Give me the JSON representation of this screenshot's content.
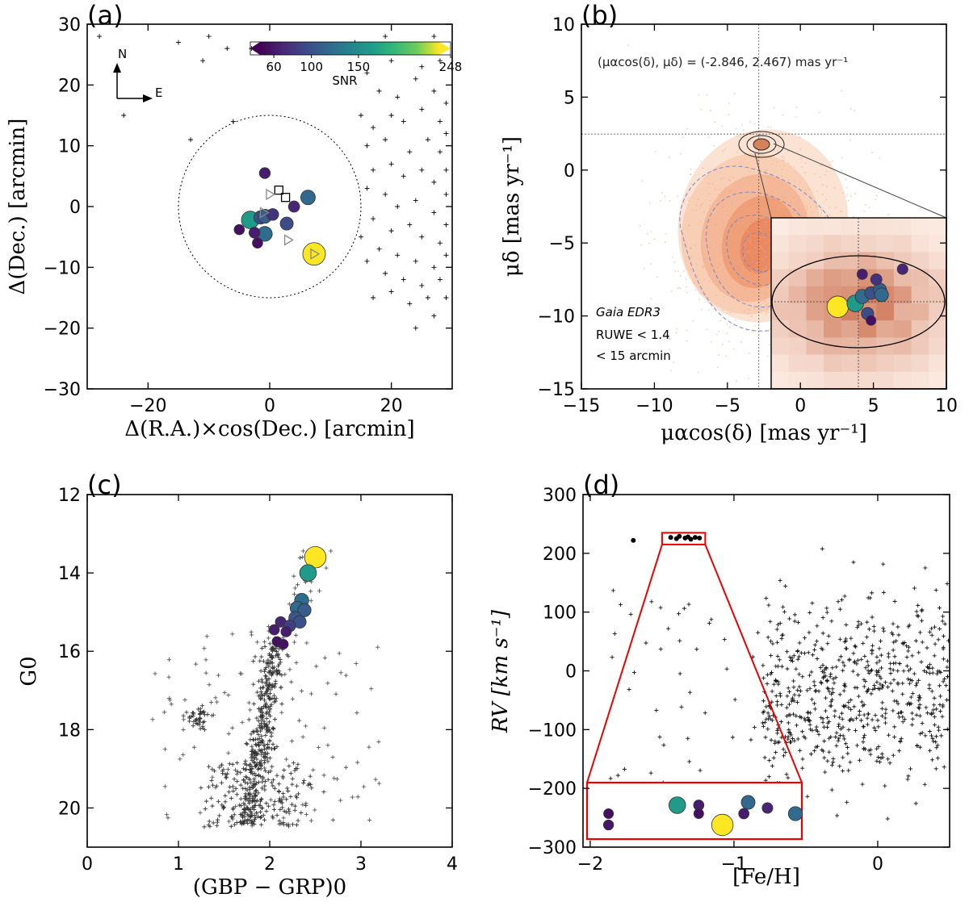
{
  "chart_data": [
    {
      "panel": "(a)",
      "type": "scatter",
      "xlabel": "Δ(R.A.)×cos(Dec.) [arcmin]",
      "ylabel": "Δ(Dec.) [arcmin]",
      "xlim": [
        -30,
        30
      ],
      "ylim": [
        -30,
        30
      ],
      "xticks": [
        -20,
        0,
        20
      ],
      "xtick_labels": [
        "−20",
        "0",
        "20"
      ],
      "yticks": [
        -30,
        -20,
        -10,
        0,
        10,
        20,
        30
      ],
      "ytick_labels": [
        "−30",
        "−20",
        "−10",
        "0",
        "10",
        "20",
        "30"
      ],
      "compass": {
        "north": "N",
        "east": "E"
      },
      "circle_radius_arcmin": 15,
      "colorbar": {
        "label": "SNR",
        "ticks": [
          60,
          100,
          150,
          248
        ],
        "tick_labels": [
          "60",
          "100",
          "150",
          "248"
        ],
        "range": [
          35,
          248
        ]
      },
      "members": [
        {
          "x": -0.8,
          "y": 5.5,
          "snr": 55
        },
        {
          "x": 6.3,
          "y": 1.5,
          "snr": 115
        },
        {
          "x": 4.0,
          "y": 0.0,
          "snr": 60
        },
        {
          "x": -3.2,
          "y": -2.2,
          "snr": 165
        },
        {
          "x": -1.5,
          "y": -1.8,
          "snr": 95
        },
        {
          "x": -0.8,
          "y": -1.6,
          "snr": 105
        },
        {
          "x": 0.5,
          "y": -1.3,
          "snr": 70
        },
        {
          "x": 2.8,
          "y": -2.8,
          "snr": 90
        },
        {
          "x": -0.8,
          "y": -4.5,
          "snr": 120
        },
        {
          "x": -2.5,
          "y": -4.3,
          "snr": 55
        },
        {
          "x": -5.0,
          "y": -3.8,
          "snr": 45
        },
        {
          "x": -2.0,
          "y": -6.0,
          "snr": 45
        },
        {
          "x": 7.3,
          "y": -7.8,
          "snr": 248
        }
      ],
      "squares": [
        {
          "x": 1.5,
          "y": 2.7
        },
        {
          "x": 2.6,
          "y": 1.5
        }
      ],
      "triangles": [
        {
          "x": 0.0,
          "y": 2.0
        },
        {
          "x": 3.0,
          "y": -5.5
        },
        {
          "x": 7.3,
          "y": -7.8
        },
        {
          "x": -1.0,
          "y": -1.0
        }
      ],
      "field_stars": [
        [
          -28,
          28
        ],
        [
          -15,
          27
        ],
        [
          -10,
          28
        ],
        [
          -7,
          26
        ],
        [
          -24,
          15
        ],
        [
          -13,
          11
        ],
        [
          -11,
          24
        ],
        [
          -6,
          14
        ],
        [
          -3,
          26
        ],
        [
          14,
          27
        ],
        [
          19,
          28
        ],
        [
          27,
          28
        ],
        [
          20,
          24
        ],
        [
          23,
          26
        ],
        [
          25,
          23
        ],
        [
          28,
          24
        ],
        [
          16,
          22
        ],
        [
          18,
          19
        ],
        [
          21,
          18
        ],
        [
          24,
          21
        ],
        [
          27,
          19
        ],
        [
          29,
          17
        ],
        [
          15,
          15
        ],
        [
          17,
          13
        ],
        [
          20,
          15
        ],
        [
          22,
          14
        ],
        [
          25,
          16
        ],
        [
          28,
          14
        ],
        [
          29,
          12
        ],
        [
          16,
          10
        ],
        [
          19,
          11
        ],
        [
          23,
          9
        ],
        [
          26,
          11
        ],
        [
          28,
          9
        ],
        [
          29,
          6
        ],
        [
          17,
          6
        ],
        [
          20,
          7
        ],
        [
          22,
          5
        ],
        [
          25,
          6
        ],
        [
          27,
          4
        ],
        [
          29,
          2
        ],
        [
          16,
          3
        ],
        [
          19,
          2
        ],
        [
          21,
          0
        ],
        [
          24,
          1
        ],
        [
          27,
          -1
        ],
        [
          29,
          -3
        ],
        [
          17,
          -2
        ],
        [
          20,
          -4
        ],
        [
          23,
          -3
        ],
        [
          25,
          -5
        ],
        [
          28,
          -6
        ],
        [
          15,
          -5
        ],
        [
          18,
          -7
        ],
        [
          21,
          -8
        ],
        [
          24,
          -9
        ],
        [
          27,
          -10
        ],
        [
          29,
          -8
        ],
        [
          16,
          -9
        ],
        [
          19,
          -11
        ],
        [
          22,
          -12
        ],
        [
          25,
          -13
        ],
        [
          28,
          -12
        ],
        [
          20,
          -14
        ],
        [
          23,
          -16
        ],
        [
          26,
          -15
        ],
        [
          29,
          -15
        ],
        [
          24,
          -20
        ],
        [
          27,
          -18
        ],
        [
          17,
          -15
        ]
      ]
    },
    {
      "panel": "(b)",
      "type": "scatter",
      "xlabel": "μαcos(δ) [mas yr⁻¹]",
      "ylabel": "μδ [mas yr⁻¹]",
      "xlim": [
        -15,
        10
      ],
      "ylim": [
        -15,
        10
      ],
      "xticks": [
        -15,
        -10,
        -5,
        0,
        5,
        10
      ],
      "xtick_labels": [
        "−15",
        "−10",
        "−5",
        "0",
        "5",
        "10"
      ],
      "yticks": [
        -15,
        -10,
        -5,
        0,
        5,
        10
      ],
      "ytick_labels": [
        "−15",
        "−10",
        "−5",
        "0",
        "5",
        "10"
      ],
      "mean_pm": {
        "pmra": -2.846,
        "pmdec": 2.467
      },
      "annotation": "(μαcos(δ), μδ) = (-2.846, 2.467) mas yr⁻¹",
      "legend_lines": [
        "Gaia EDR3",
        "RUWE < 1.4",
        "< 15 arcmin"
      ],
      "inset_members": [
        {
          "x": 0.38,
          "y": 0.52,
          "snr": 248
        },
        {
          "x": 0.48,
          "y": 0.5,
          "snr": 165
        },
        {
          "x": 0.52,
          "y": 0.46,
          "snr": 120
        },
        {
          "x": 0.57,
          "y": 0.44,
          "snr": 95
        },
        {
          "x": 0.62,
          "y": 0.42,
          "snr": 105
        },
        {
          "x": 0.6,
          "y": 0.36,
          "snr": 70
        },
        {
          "x": 0.75,
          "y": 0.3,
          "snr": 60
        },
        {
          "x": 0.52,
          "y": 0.33,
          "snr": 55
        },
        {
          "x": 0.55,
          "y": 0.56,
          "snr": 90
        },
        {
          "x": 0.57,
          "y": 0.6,
          "snr": 45
        },
        {
          "x": 0.63,
          "y": 0.45,
          "snr": 115
        }
      ]
    },
    {
      "panel": "(c)",
      "type": "scatter",
      "xlabel": "(GBP − GRP)0",
      "ylabel": "G0",
      "xlim": [
        0,
        4
      ],
      "ylim": [
        21,
        12
      ],
      "xticks": [
        0,
        1,
        2,
        3,
        4
      ],
      "xtick_labels": [
        "0",
        "1",
        "2",
        "3",
        "4"
      ],
      "yticks": [
        12,
        14,
        16,
        18,
        20
      ],
      "ytick_labels": [
        "12",
        "14",
        "16",
        "18",
        "20"
      ],
      "members": [
        {
          "x": 2.5,
          "y": 13.6,
          "snr": 248
        },
        {
          "x": 2.42,
          "y": 14.0,
          "snr": 165
        },
        {
          "x": 2.35,
          "y": 14.7,
          "snr": 120
        },
        {
          "x": 2.3,
          "y": 14.9,
          "snr": 115
        },
        {
          "x": 2.38,
          "y": 14.95,
          "snr": 105
        },
        {
          "x": 2.28,
          "y": 15.15,
          "snr": 100
        },
        {
          "x": 2.33,
          "y": 15.25,
          "snr": 95
        },
        {
          "x": 2.12,
          "y": 15.25,
          "snr": 60
        },
        {
          "x": 2.22,
          "y": 15.35,
          "snr": 80
        },
        {
          "x": 2.05,
          "y": 15.45,
          "snr": 55
        },
        {
          "x": 2.18,
          "y": 15.5,
          "snr": 55
        },
        {
          "x": 2.08,
          "y": 15.75,
          "snr": 45
        },
        {
          "x": 2.15,
          "y": 15.82,
          "snr": 45
        }
      ]
    },
    {
      "panel": "(d)",
      "type": "scatter",
      "xlabel": "[Fe/H]",
      "ylabel": "RV [km s⁻¹]",
      "xlim": [
        -2.05,
        0.5
      ],
      "ylim": [
        -300,
        300
      ],
      "xticks": [
        -2,
        -1,
        0
      ],
      "xtick_labels": [
        "−2",
        "−1",
        "0"
      ],
      "yticks": [
        -300,
        -200,
        -100,
        0,
        100,
        200,
        300
      ],
      "ytick_labels": [
        "−300",
        "−200",
        "−100",
        "0",
        "100",
        "200",
        "300"
      ],
      "members": [
        {
          "feh": -1.7,
          "rv": 222
        },
        {
          "feh": -1.44,
          "rv": 227
        },
        {
          "feh": -1.4,
          "rv": 225
        },
        {
          "feh": -1.38,
          "rv": 229
        },
        {
          "feh": -1.34,
          "rv": 226
        },
        {
          "feh": -1.32,
          "rv": 228
        },
        {
          "feh": -1.3,
          "rv": 224
        },
        {
          "feh": -1.27,
          "rv": 227
        },
        {
          "feh": -1.24,
          "rv": 226
        }
      ],
      "inset_members": [
        {
          "x": 0.1,
          "y": 0.55,
          "snr": 45
        },
        {
          "x": 0.1,
          "y": 0.75,
          "snr": 50
        },
        {
          "x": 0.42,
          "y": 0.4,
          "snr": 165
        },
        {
          "x": 0.52,
          "y": 0.4,
          "snr": 55
        },
        {
          "x": 0.52,
          "y": 0.55,
          "snr": 45
        },
        {
          "x": 0.63,
          "y": 0.75,
          "snr": 248
        },
        {
          "x": 0.75,
          "y": 0.35,
          "snr": 115
        },
        {
          "x": 0.73,
          "y": 0.55,
          "snr": 55
        },
        {
          "x": 0.84,
          "y": 0.45,
          "snr": 60
        },
        {
          "x": 0.97,
          "y": 0.55,
          "snr": 120
        }
      ]
    }
  ]
}
